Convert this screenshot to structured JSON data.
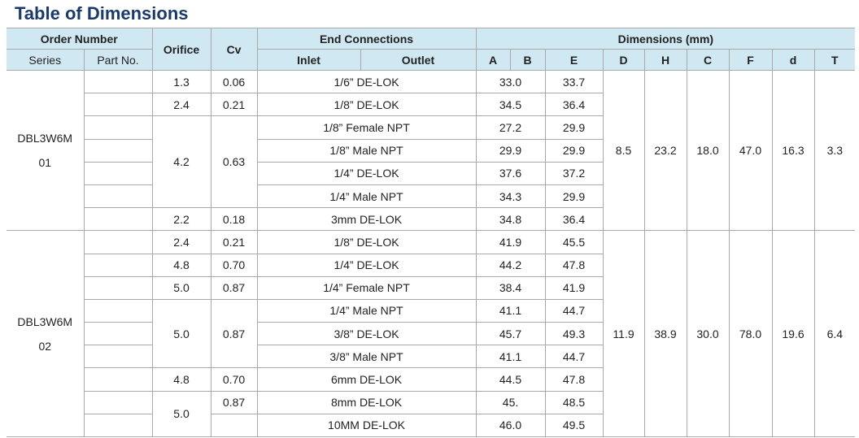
{
  "title": "Table of Dimensions",
  "header": {
    "order_number": "Order Number",
    "orifice": "Orifice",
    "cv": "Cv",
    "end_connections": "End Connections",
    "dimensions": "Dimensions (mm)",
    "series": "Series",
    "part_no": "Part No.",
    "inlet": "Inlet",
    "outlet": "Outlet",
    "dim_columns": [
      "A",
      "B",
      "E",
      "D",
      "H",
      "C",
      "F",
      "d",
      "T"
    ]
  },
  "groups": [
    {
      "series": "DBL3W6M",
      "number": "01",
      "dims": [
        "8.5",
        "23.2",
        "18.0",
        "47.0",
        "16.3",
        "3.3"
      ],
      "rows": [
        {
          "orifice": "1.3",
          "cv": "0.06",
          "connection": "1/6” DE-LOK",
          "a": "33.0",
          "e": "33.7"
        },
        {
          "orifice": "2.4",
          "cv": "0.21",
          "connection": "1/8” DE-LOK",
          "a": "34.5",
          "e": "36.4"
        },
        {
          "orifice": "4.2",
          "cv": "0.63",
          "connection": "1/8” Female NPT",
          "a": "27.2",
          "e": "29.9"
        },
        {
          "connection": "1/8” Male NPT",
          "a": "29.9",
          "e": "29.9"
        },
        {
          "connection": "1/4” DE-LOK",
          "a": "37.6",
          "e": "37.2"
        },
        {
          "connection": "1/4” Male NPT",
          "a": "34.3",
          "e": "29.9"
        },
        {
          "orifice": "2.2",
          "cv": "0.18",
          "connection": "3mm DE-LOK",
          "a": "34.8",
          "e": "36.4"
        }
      ]
    },
    {
      "series": "DBL3W6M",
      "number": "02",
      "dims": [
        "11.9",
        "38.9",
        "30.0",
        "78.0",
        "19.6",
        "6.4"
      ],
      "rows": [
        {
          "orifice": "2.4",
          "cv": "0.21",
          "connection": "1/8” DE-LOK",
          "a": "41.9",
          "e": "45.5"
        },
        {
          "orifice": "4.8",
          "cv": "0.70",
          "connection": "1/4” DE-LOK",
          "a": "44.2",
          "e": "47.8"
        },
        {
          "orifice": "5.0",
          "cv": "0.87",
          "connection": "1/4” Female NPT",
          "a": "38.4",
          "e": "41.9"
        },
        {
          "orifice": "5.0",
          "cv": "0.87",
          "connection": "1/4” Male NPT",
          "a": "41.1",
          "e": "44.7"
        },
        {
          "connection": "3/8” DE-LOK",
          "a": "45.7",
          "e": "49.3"
        },
        {
          "connection": "3/8” Male NPT",
          "a": "41.1",
          "e": "44.7"
        },
        {
          "orifice": "4.8",
          "cv": "0.70",
          "connection": "6mm DE-LOK",
          "a": "44.5",
          "e": "47.8"
        },
        {
          "orifice": "5.0",
          "cv": "0.87",
          "connection": "8mm DE-LOK",
          "a": "45.",
          "e": "48.5"
        },
        {
          "cv": null,
          "connection": "10MM DE-LOK",
          "a": "46.0",
          "e": "49.5"
        }
      ]
    }
  ]
}
